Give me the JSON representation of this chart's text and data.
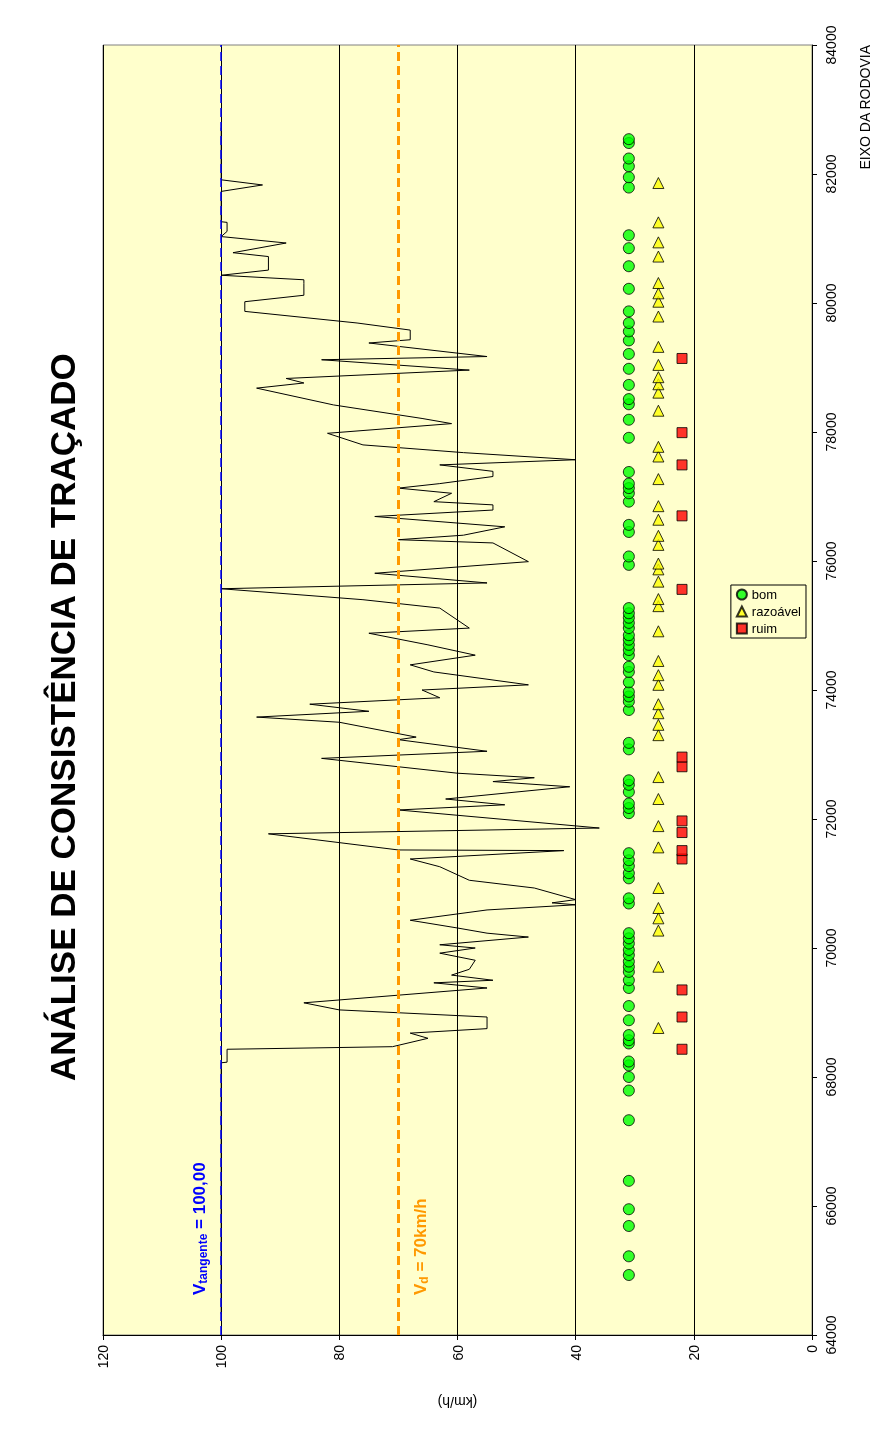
{
  "chart_data": {
    "type": "line",
    "title": "ANÁLISE DE CONSISTÊNCIA DE TRAÇADO",
    "xlabel": "(km/h)",
    "ylabel": "EIXO DA RODOVIA",
    "xlim": [
      120,
      0
    ],
    "xticks": [
      120,
      100,
      80,
      60,
      40,
      20,
      0
    ],
    "ylim": [
      64000,
      84000
    ],
    "yticks": [
      64000,
      66000,
      68000,
      70000,
      72000,
      74000,
      76000,
      78000,
      80000,
      82000,
      84000
    ],
    "grid": "x",
    "legend": "right",
    "series": [
      {
        "color": "#000000",
        "marker": "none",
        "line_style": "solid",
        "values": [
          64330,
          68220,
          68230,
          68430,
          68470,
          68600,
          68680,
          68750,
          68930,
          69040,
          69150,
          69380,
          69460,
          69500,
          69580,
          69670,
          69810,
          69920,
          70000,
          70050,
          70170,
          70230,
          70310,
          70430,
          70590,
          70670,
          70700,
          70750,
          70930,
          71050,
          71260,
          71380,
          71510,
          71520,
          71770,
          71860,
          72140,
          72220,
          72310,
          72500,
          72580,
          72640,
          72710,
          72910,
          72940,
          73050,
          73230,
          73270,
          73500,
          73580,
          73670,
          73780,
          73880,
          74000,
          74080,
          74280,
          74390,
          74540,
          74700,
          74880,
          74960,
          75270,
          75400,
          75570,
          75660,
          75810,
          75990,
          76280,
          76330,
          76400,
          76530,
          76690,
          76790,
          76870,
          76920,
          77050,
          77130,
          77200,
          77310,
          77390,
          77490,
          77570,
          77680,
          77800,
          77980,
          78130,
          78210,
          78420,
          78680,
          78760,
          78830,
          78960,
          79120,
          79170,
          79380,
          79430,
          79580,
          79690,
          79870,
          80020,
          80120,
          80300,
          80360,
          80430,
          80510,
          80720,
          80780,
          80930,
          81030,
          81110,
          81250,
          81260,
          81730,
          81830,
          81910,
          82710
        ],
        "x": [
          100,
          100,
          99,
          99,
          71,
          65,
          68,
          55,
          55,
          80,
          86,
          55,
          64,
          54,
          61,
          58,
          57,
          63,
          57,
          63,
          48,
          55,
          60,
          68,
          55,
          40,
          44,
          40,
          47,
          58,
          63,
          68,
          42,
          70,
          92,
          36,
          70,
          52,
          62,
          41,
          54,
          47,
          60,
          80,
          83,
          55,
          70,
          67,
          80,
          94,
          75,
          85,
          63,
          66,
          48,
          64,
          68,
          57,
          65,
          75,
          58,
          63,
          76,
          100,
          55,
          74,
          48,
          54,
          70,
          59,
          52,
          74,
          54,
          54,
          64,
          61,
          70,
          63,
          54,
          54,
          63,
          40,
          59,
          76,
          82,
          61,
          66,
          81,
          94,
          86,
          89,
          58,
          83,
          55,
          75,
          68,
          68,
          77,
          96,
          96,
          86,
          86,
          86,
          100,
          92,
          92,
          98,
          89,
          100,
          99,
          99,
          100,
          100,
          93,
          100,
          100
        ]
      },
      {
        "type": "scatter",
        "name": "bom",
        "color": "#00ff00",
        "marker": "circle",
        "values": [
          64930,
          65220,
          65690,
          65950,
          66390,
          67330,
          67790,
          68000,
          68180,
          68240,
          68520,
          68570,
          68650,
          68880,
          69100,
          69380,
          69500,
          69630,
          69710,
          69790,
          69890,
          69970,
          70070,
          70150,
          70230,
          70690,
          70770,
          71080,
          71160,
          71270,
          71360,
          71470,
          72090,
          72170,
          72240,
          72420,
          72530,
          72600,
          73080,
          73180,
          73690,
          73820,
          73900,
          73970,
          74120,
          74280,
          74360,
          74540,
          74620,
          74700,
          74780,
          74850,
          74960,
          75040,
          75120,
          75190,
          75270,
          75940,
          76070,
          76450,
          76560,
          76920,
          77050,
          77130,
          77200,
          77380,
          77910,
          78190,
          78430,
          78510,
          78730,
          78980,
          79210,
          79420,
          79560,
          79690,
          79870,
          80220,
          80570,
          80850,
          81050,
          81790,
          81950,
          82120,
          82240,
          82480,
          82540
        ],
        "x": [
          31,
          31,
          31,
          31,
          31,
          31,
          31,
          31,
          31,
          31,
          31,
          31,
          31,
          31,
          31,
          31,
          31,
          31,
          31,
          31,
          31,
          31,
          31,
          31,
          31,
          31,
          31,
          31,
          31,
          31,
          31,
          31,
          31,
          31,
          31,
          31,
          31,
          31,
          31,
          31,
          31,
          31,
          31,
          31,
          31,
          31,
          31,
          31,
          31,
          31,
          31,
          31,
          31,
          31,
          31,
          31,
          31,
          31,
          31,
          31,
          31,
          31,
          31,
          31,
          31,
          31,
          31,
          31,
          31,
          31,
          31,
          31,
          31,
          31,
          31,
          31,
          31,
          31,
          31,
          31,
          31,
          31,
          31,
          31,
          31,
          31,
          31
        ]
      },
      {
        "type": "scatter",
        "name": "razoável",
        "color": "#ffff00",
        "marker": "triangle",
        "values": [
          68760,
          69710,
          70270,
          70460,
          70620,
          70930,
          71560,
          71890,
          72310,
          72650,
          73300,
          73460,
          73640,
          73780,
          74080,
          74230,
          74450,
          74910,
          75300,
          75410,
          75680,
          75870,
          75960,
          76250,
          76390,
          76640,
          76850,
          77270,
          77620,
          77770,
          78330,
          78610,
          78740,
          78850,
          79040,
          79320,
          79790,
          80020,
          80150,
          80310,
          80720,
          80940,
          81250,
          81860
        ],
        "x": [
          26,
          26,
          26,
          26,
          26,
          26,
          26,
          26,
          26,
          26,
          26,
          26,
          26,
          26,
          26,
          26,
          26,
          26,
          26,
          26,
          26,
          26,
          26,
          26,
          26,
          26,
          26,
          26,
          26,
          26,
          26,
          26,
          26,
          26,
          26,
          26,
          26,
          26,
          26,
          26,
          26,
          26,
          26,
          26
        ]
      },
      {
        "type": "scatter",
        "name": "ruim",
        "color": "#ff0000",
        "marker": "square",
        "values": [
          68430,
          68930,
          69350,
          71380,
          71510,
          71790,
          71970,
          72810,
          72960,
          75560,
          76700,
          77490,
          77990,
          79140
        ],
        "x": [
          22,
          22,
          22,
          22,
          22,
          22,
          22,
          22,
          22,
          22,
          22,
          22,
          22,
          22
        ]
      }
    ],
    "ref_lines": [
      {
        "axis": "x",
        "value": 100,
        "label": "V$_{tangente}$ = 100,00",
        "color": "#0000ff",
        "line_style": "dashed"
      },
      {
        "axis": "x",
        "value": 70,
        "label": "V$_{d}$ = 70km/h",
        "color": "#ff9900",
        "line_style": "dashed"
      }
    ]
  }
}
